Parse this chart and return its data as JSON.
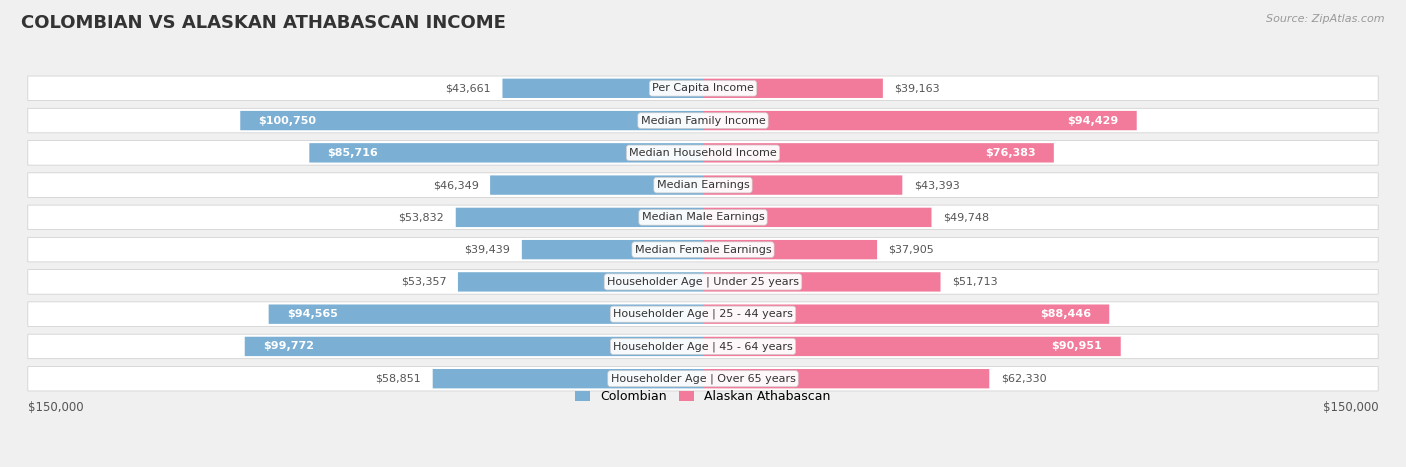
{
  "title": "COLOMBIAN VS ALASKAN ATHABASCAN INCOME",
  "source": "Source: ZipAtlas.com",
  "categories": [
    "Per Capita Income",
    "Median Family Income",
    "Median Household Income",
    "Median Earnings",
    "Median Male Earnings",
    "Median Female Earnings",
    "Householder Age | Under 25 years",
    "Householder Age | 25 - 44 years",
    "Householder Age | 45 - 64 years",
    "Householder Age | Over 65 years"
  ],
  "colombian_values": [
    43661,
    100750,
    85716,
    46349,
    53832,
    39439,
    53357,
    94565,
    99772,
    58851
  ],
  "alaskan_values": [
    39163,
    94429,
    76383,
    43393,
    49748,
    37905,
    51713,
    88446,
    90951,
    62330
  ],
  "colombian_labels": [
    "$43,661",
    "$100,750",
    "$85,716",
    "$46,349",
    "$53,832",
    "$39,439",
    "$53,357",
    "$94,565",
    "$99,772",
    "$58,851"
  ],
  "alaskan_labels": [
    "$39,163",
    "$94,429",
    "$76,383",
    "$43,393",
    "$49,748",
    "$37,905",
    "$51,713",
    "$88,446",
    "$90,951",
    "$62,330"
  ],
  "colombian_color": "#7bafd4",
  "alaskan_color": "#f27a9a",
  "max_value": 150000,
  "background_color": "#f0f0f0",
  "row_bg_color": "#ffffff",
  "row_alt_color": "#e8e8e8",
  "legend_colombian": "Colombian",
  "legend_alaskan": "Alaskan Athabascan",
  "title_fontsize": 13,
  "label_fontsize": 8,
  "category_fontsize": 8,
  "axis_label": "$150,000",
  "inside_label_threshold": 65000
}
